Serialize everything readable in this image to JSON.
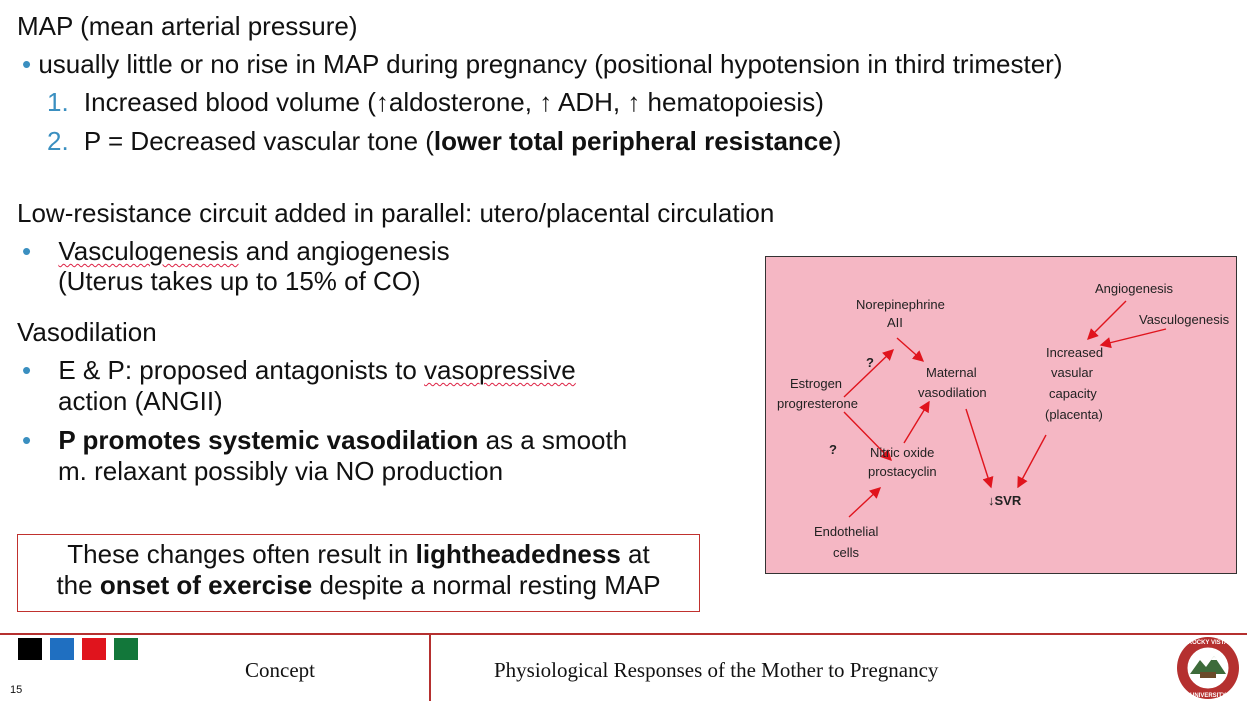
{
  "map_heading": "MAP (mean arterial pressure)",
  "map_bullet": "usually little or no rise in MAP during pregnancy (positional hypotension in third trimester)",
  "list": [
    {
      "num": "1.",
      "text": "Increased blood volume (↑aldosterone, ↑ ADH, ↑ hematopoiesis)"
    },
    {
      "num": "2.",
      "pre": "P = Decreased vascular tone (",
      "bold": "lower total peripheral resistance",
      "post": ")"
    }
  ],
  "lowres_heading": "Low-resistance circuit added in parallel: utero/placental circulation",
  "lowres_bullet": {
    "w1": "Vasculogenesis",
    "rest": " and angiogenesis",
    "line2": "(Uterus takes up to 15% of CO)"
  },
  "vaso_heading": "Vasodilation",
  "vaso_b1": {
    "pre": "E & P: proposed antagonists to ",
    "squig": "vasopressive",
    "line2": "action (ANGII)"
  },
  "vaso_b2": {
    "bold": "P promotes systemic vasodilation",
    "rest": " as a smooth",
    "line2": "m. relaxant possibly via NO production"
  },
  "callout": {
    "l1a": "These changes often result in ",
    "l1b": "lightheadedness",
    "l1c": " at",
    "l2a": "the ",
    "l2b": "onset of exercise",
    "l2c": " despite a normal resting MAP"
  },
  "diagram": {
    "norepinephrine": "Norepinephrine",
    "aii": "AII",
    "estrogen": "Estrogen",
    "progesterone": "progresterone",
    "q1": "?",
    "q2": "?",
    "maternal": "Maternal",
    "vasodilation": "vasodilation",
    "nitric": "Nitric oxide",
    "prostacyclin": "prostacyclin",
    "endothelial": "Endothelial",
    "cells": "cells",
    "svr": "↓SVR",
    "angiogenesis": "Angiogenesis",
    "vasculogenesis": "Vasculogenesis",
    "increased": "Increased",
    "vasular": "vasular",
    "capacity": "capacity",
    "placenta": "(placenta)"
  },
  "footer": {
    "concept": "Concept",
    "title": "Physiological Responses of the Mother to Pregnancy",
    "slide_number": "15"
  },
  "logo_text": "ROCKY VISTA UNIVERSITY",
  "colors": {
    "accent": "#b5302f",
    "bullet": "#3a8fc0",
    "diagram_bg": "#f5b7c4",
    "squares": [
      "#000000",
      "#1f6fc1",
      "#e0141d",
      "#12773a"
    ]
  }
}
